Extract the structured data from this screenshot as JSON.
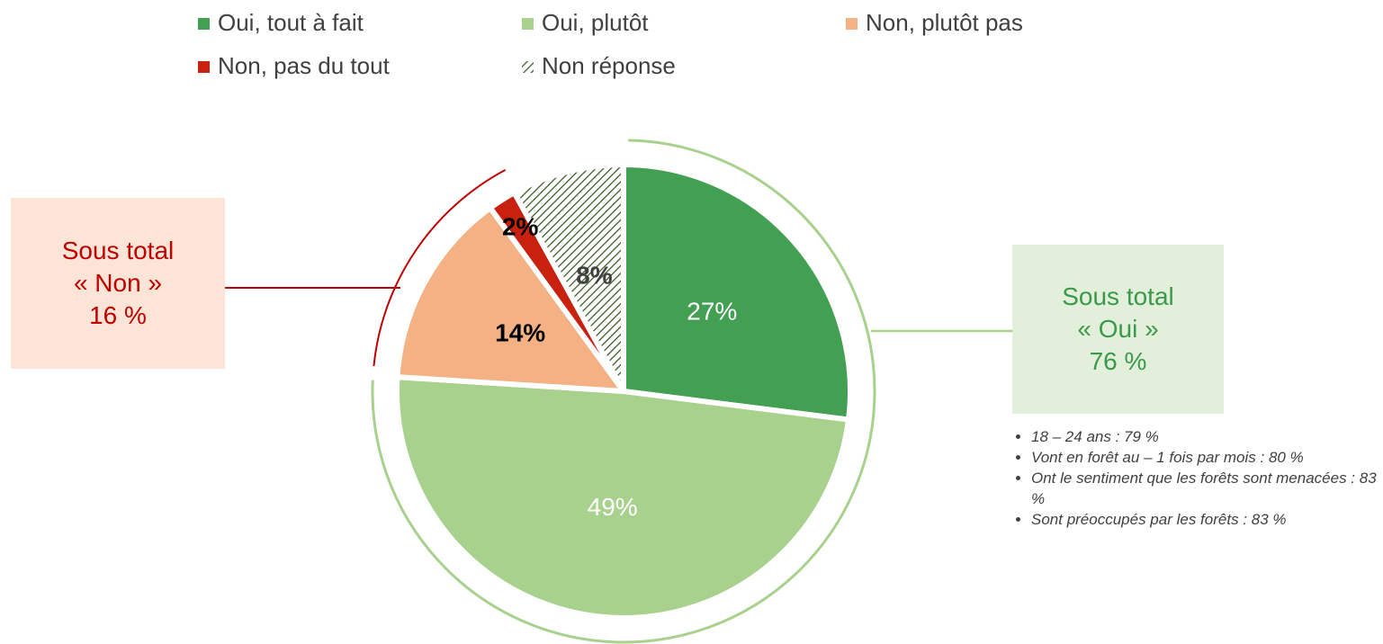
{
  "chart_data": {
    "type": "pie",
    "categories": [
      "Oui, tout à fait",
      "Oui, plutôt",
      "Non, plutôt pas",
      "Non, pas du tout",
      "Non réponse"
    ],
    "values": [
      27,
      49,
      14,
      2,
      8
    ],
    "value_labels": [
      "27%",
      "49%",
      "14%",
      "2%",
      "8%"
    ],
    "colors": [
      "#43a052",
      "#a9d18e",
      "#f4b183",
      "#c9210f",
      "#375623"
    ],
    "hatched": [
      false,
      false,
      false,
      false,
      true
    ],
    "label_colors": [
      "#ffffff",
      "#ffffff",
      "#000000",
      "#000000",
      "#404040"
    ],
    "legend": "top"
  },
  "annotations": {
    "non": [
      "Sous total",
      "« Non »",
      "16 %"
    ],
    "oui": [
      "Sous total",
      "« Oui »",
      "76 %"
    ],
    "notes": [
      "18 – 24 ans : 79 %",
      "Vont en forêt au – 1 fois par mois : 80 %",
      "Ont le sentiment que les forêts sont menacées : 83 %",
      "Sont préoccupés par les forêts : 83 %"
    ]
  }
}
